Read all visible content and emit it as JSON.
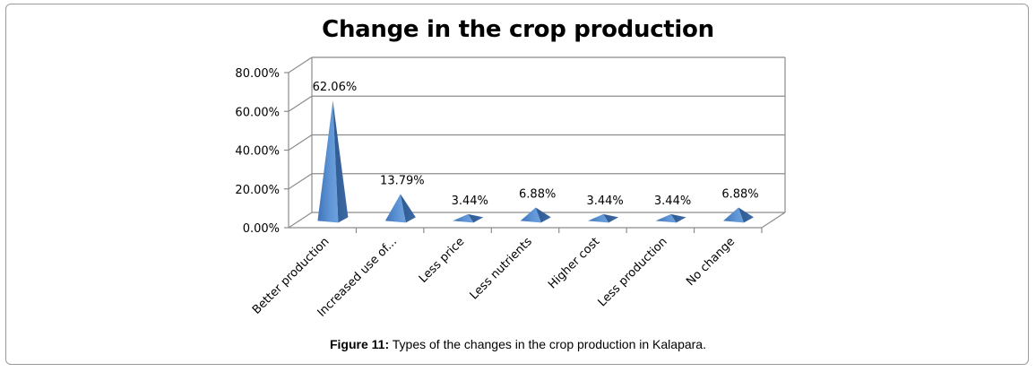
{
  "chart_data": {
    "type": "bar",
    "title": "Change in the crop production",
    "categories": [
      "Better production",
      "Increased use of...",
      "Less price",
      "Less nutrients",
      "Higher cost",
      "Less production",
      "No change"
    ],
    "values": [
      62.06,
      13.79,
      3.44,
      6.88,
      3.44,
      3.44,
      6.88
    ],
    "data_labels": [
      "62.06%",
      "13.79%",
      "3.44%",
      "6.88%",
      "3.44%",
      "3.44%",
      "6.88%"
    ],
    "y_ticks": [
      "0.00%",
      "20.00%",
      "40.00%",
      "60.00%",
      "80.00%"
    ],
    "ylim": [
      0,
      80
    ],
    "grid": true,
    "bar_color": "#4a7ebb",
    "shape": "3d-pyramid"
  },
  "caption": {
    "label": "Figure 11:",
    "text": " Types of the changes in the crop production in Kalapara."
  }
}
